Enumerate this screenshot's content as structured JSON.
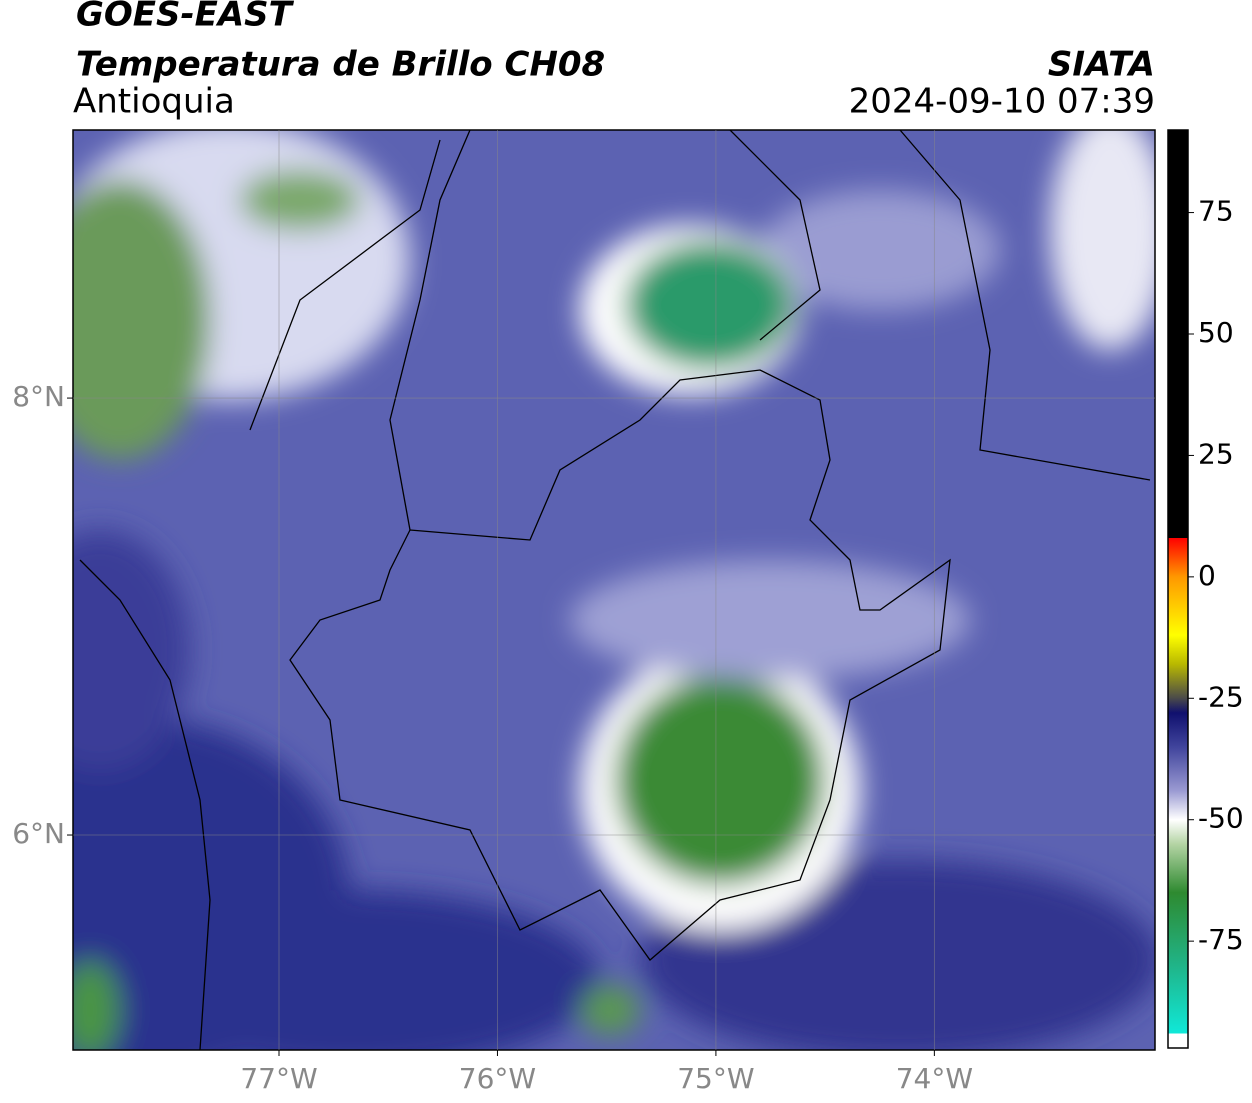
{
  "title": "GOES-EAST",
  "subtitle": "Temperatura de Brillo CH08",
  "region": "Antioquia",
  "source": "SIATA",
  "timestamp": "2024-09-10 07:39",
  "map": {
    "xlim": [
      -77.943,
      -72.99
    ],
    "ylim": [
      5.016,
      9.227
    ],
    "xticks": [
      {
        "value": -77,
        "label": "77°W"
      },
      {
        "value": -76,
        "label": "76°W"
      },
      {
        "value": -75,
        "label": "75°W"
      },
      {
        "value": -74,
        "label": "74°W"
      }
    ],
    "yticks": [
      {
        "value": 8,
        "label": "8°N"
      },
      {
        "value": 6,
        "label": "6°N"
      }
    ],
    "grid": true
  },
  "colorbar": {
    "lim": [
      -97,
      92
    ],
    "ticks": [
      75,
      50,
      25,
      0,
      -25,
      -50,
      -75
    ],
    "stops": [
      {
        "value": -97,
        "color": "#ffffff"
      },
      {
        "value": -94,
        "color": "#ffffff"
      },
      {
        "value": -94,
        "color": "#10e8d8"
      },
      {
        "value": -80,
        "color": "#20b488"
      },
      {
        "value": -65,
        "color": "#2e8a30"
      },
      {
        "value": -55,
        "color": "#b4d4a4"
      },
      {
        "value": -50,
        "color": "#ffffff"
      },
      {
        "value": -44,
        "color": "#9a9ad2"
      },
      {
        "value": -35,
        "color": "#40449c"
      },
      {
        "value": -28,
        "color": "#10106e"
      },
      {
        "value": -25,
        "color": "#4a4a4a"
      },
      {
        "value": -18,
        "color": "#b8b800"
      },
      {
        "value": -12,
        "color": "#ffff00"
      },
      {
        "value": 0,
        "color": "#ff9800"
      },
      {
        "value": 8,
        "color": "#ff0000"
      },
      {
        "value": 8,
        "color": "#000000"
      },
      {
        "value": 92,
        "color": "#000000"
      }
    ]
  }
}
